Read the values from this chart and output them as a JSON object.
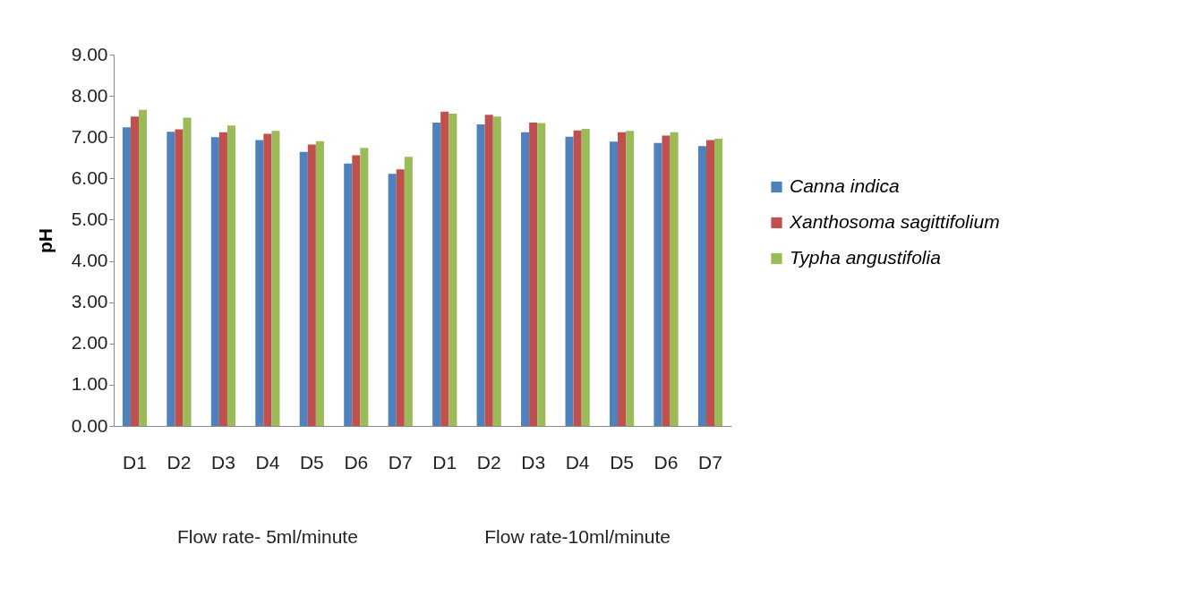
{
  "chart_data": {
    "type": "bar",
    "ylabel": "pH",
    "categories": [
      "D1",
      "D2",
      "D3",
      "D4",
      "D5",
      "D6",
      "D7",
      "D1",
      "D2",
      "D3",
      "D4",
      "D5",
      "D6",
      "D7"
    ],
    "series": [
      {
        "name": "Canna indica",
        "color": "#4f81bd",
        "values": [
          7.24,
          7.13,
          7.0,
          6.93,
          6.64,
          6.36,
          6.11,
          7.35,
          7.31,
          7.12,
          7.01,
          6.89,
          6.86,
          6.78
        ]
      },
      {
        "name": "Xanthosoma sagittifolium",
        "color": "#c0504d",
        "values": [
          7.5,
          7.19,
          7.12,
          7.08,
          6.82,
          6.56,
          6.22,
          7.62,
          7.54,
          7.35,
          7.16,
          7.12,
          7.04,
          6.93
        ]
      },
      {
        "name": "Typha angustifolia",
        "color": "#9bbb59",
        "values": [
          7.66,
          7.47,
          7.28,
          7.15,
          6.9,
          6.74,
          6.52,
          7.57,
          7.5,
          7.34,
          7.2,
          7.15,
          7.12,
          6.96
        ]
      }
    ],
    "ylim": [
      0,
      9
    ],
    "yticks": [
      {
        "value": 0,
        "label": "0.00"
      },
      {
        "value": 1,
        "label": "1.00"
      },
      {
        "value": 2,
        "label": "2.00"
      },
      {
        "value": 3,
        "label": "3.00"
      },
      {
        "value": 4,
        "label": "4.00"
      },
      {
        "value": 5,
        "label": "5.00"
      },
      {
        "value": 6,
        "label": "6.00"
      },
      {
        "value": 7,
        "label": "7.00"
      },
      {
        "value": 8,
        "label": "8.00"
      },
      {
        "value": 9,
        "label": "9.00"
      }
    ],
    "annotations": [
      "Flow rate- 5ml/minute",
      "Flow rate-10ml/minute"
    ],
    "grid": false,
    "legend": "right"
  }
}
